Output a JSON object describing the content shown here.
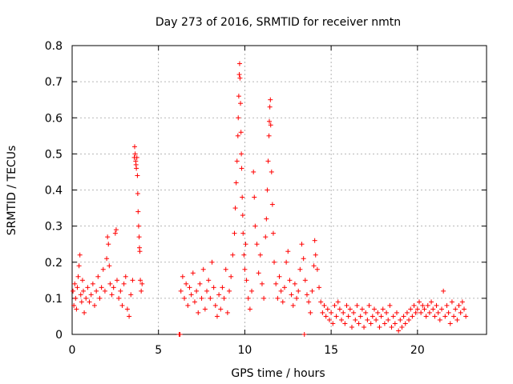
{
  "chart_data": {
    "type": "scatter",
    "title": "Day 273 of 2016, SRMTID for receiver nmtn",
    "xlabel": "GPS time / hours",
    "ylabel": "SRMTID / TECUs",
    "xlim": [
      0,
      24
    ],
    "ylim": [
      0,
      0.8
    ],
    "grid": true,
    "x_ticks": [
      0,
      5,
      10,
      15,
      20
    ],
    "y_ticks": [
      0,
      0.1,
      0.2,
      0.3,
      0.4,
      0.5,
      0.6,
      0.7,
      0.8
    ],
    "x_tick_labels": [
      "0",
      "5",
      "10",
      "15",
      "20"
    ],
    "y_tick_labels": [
      "0",
      "0.1",
      "0.2",
      "0.3",
      "0.4",
      "0.5",
      "0.6",
      "0.7",
      "0.8"
    ],
    "marker": "plus",
    "series": [
      {
        "name": "SRMTID",
        "color": "#ff0000",
        "points": [
          [
            0.05,
            0.12
          ],
          [
            0.1,
            0.08
          ],
          [
            0.15,
            0.14
          ],
          [
            0.2,
            0.1
          ],
          [
            0.25,
            0.07
          ],
          [
            0.3,
            0.13
          ],
          [
            0.35,
            0.16
          ],
          [
            0.4,
            0.19
          ],
          [
            0.45,
            0.22
          ],
          [
            0.5,
            0.11
          ],
          [
            0.55,
            0.09
          ],
          [
            0.6,
            0.15
          ],
          [
            0.65,
            0.12
          ],
          [
            0.7,
            0.06
          ],
          [
            0.8,
            0.1
          ],
          [
            0.9,
            0.13
          ],
          [
            1.0,
            0.09
          ],
          [
            1.1,
            0.11
          ],
          [
            1.2,
            0.14
          ],
          [
            1.3,
            0.08
          ],
          [
            1.4,
            0.12
          ],
          [
            1.5,
            0.16
          ],
          [
            1.6,
            0.1
          ],
          [
            1.7,
            0.13
          ],
          [
            1.8,
            0.18
          ],
          [
            1.9,
            0.12
          ],
          [
            2.0,
            0.21
          ],
          [
            2.05,
            0.27
          ],
          [
            2.1,
            0.25
          ],
          [
            2.15,
            0.19
          ],
          [
            2.2,
            0.14
          ],
          [
            2.3,
            0.11
          ],
          [
            2.4,
            0.13
          ],
          [
            2.5,
            0.28
          ],
          [
            2.55,
            0.29
          ],
          [
            2.6,
            0.15
          ],
          [
            2.7,
            0.1
          ],
          [
            2.8,
            0.12
          ],
          [
            2.9,
            0.08
          ],
          [
            3.0,
            0.14
          ],
          [
            3.1,
            0.16
          ],
          [
            3.2,
            0.07
          ],
          [
            3.3,
            0.05
          ],
          [
            3.4,
            0.11
          ],
          [
            3.5,
            0.15
          ],
          [
            3.6,
            0.49
          ],
          [
            3.62,
            0.52
          ],
          [
            3.65,
            0.5
          ],
          [
            3.68,
            0.48
          ],
          [
            3.7,
            0.47
          ],
          [
            3.72,
            0.46
          ],
          [
            3.75,
            0.49
          ],
          [
            3.78,
            0.44
          ],
          [
            3.8,
            0.39
          ],
          [
            3.82,
            0.34
          ],
          [
            3.85,
            0.3
          ],
          [
            3.88,
            0.27
          ],
          [
            3.9,
            0.24
          ],
          [
            3.92,
            0.23
          ],
          [
            3.95,
            0.15
          ],
          [
            4.0,
            0.12
          ],
          [
            4.05,
            0.14
          ],
          [
            6.2,
            0.0
          ],
          [
            6.25,
            0.0
          ],
          [
            6.3,
            0.12
          ],
          [
            6.4,
            0.16
          ],
          [
            6.5,
            0.1
          ],
          [
            6.6,
            0.14
          ],
          [
            6.7,
            0.08
          ],
          [
            6.8,
            0.13
          ],
          [
            6.9,
            0.11
          ],
          [
            7.0,
            0.17
          ],
          [
            7.1,
            0.09
          ],
          [
            7.2,
            0.12
          ],
          [
            7.3,
            0.06
          ],
          [
            7.4,
            0.14
          ],
          [
            7.5,
            0.1
          ],
          [
            7.6,
            0.18
          ],
          [
            7.7,
            0.07
          ],
          [
            7.8,
            0.12
          ],
          [
            7.9,
            0.15
          ],
          [
            8.0,
            0.1
          ],
          [
            8.1,
            0.2
          ],
          [
            8.2,
            0.13
          ],
          [
            8.3,
            0.08
          ],
          [
            8.4,
            0.05
          ],
          [
            8.5,
            0.11
          ],
          [
            8.6,
            0.07
          ],
          [
            8.7,
            0.13
          ],
          [
            8.8,
            0.1
          ],
          [
            8.9,
            0.18
          ],
          [
            9.0,
            0.06
          ],
          [
            9.1,
            0.12
          ],
          [
            9.2,
            0.16
          ],
          [
            9.3,
            0.22
          ],
          [
            9.4,
            0.28
          ],
          [
            9.45,
            0.35
          ],
          [
            9.5,
            0.42
          ],
          [
            9.55,
            0.48
          ],
          [
            9.6,
            0.55
          ],
          [
            9.62,
            0.6
          ],
          [
            9.65,
            0.66
          ],
          [
            9.68,
            0.72
          ],
          [
            9.7,
            0.75
          ],
          [
            9.72,
            0.71
          ],
          [
            9.75,
            0.64
          ],
          [
            9.78,
            0.56
          ],
          [
            9.8,
            0.5
          ],
          [
            9.82,
            0.46
          ],
          [
            9.85,
            0.38
          ],
          [
            9.88,
            0.33
          ],
          [
            9.9,
            0.28
          ],
          [
            9.95,
            0.22
          ],
          [
            10.0,
            0.18
          ],
          [
            10.05,
            0.25
          ],
          [
            10.1,
            0.15
          ],
          [
            10.2,
            0.1
          ],
          [
            10.3,
            0.07
          ],
          [
            10.4,
            0.12
          ],
          [
            10.5,
            0.45
          ],
          [
            10.55,
            0.38
          ],
          [
            10.6,
            0.3
          ],
          [
            10.7,
            0.25
          ],
          [
            10.8,
            0.17
          ],
          [
            10.9,
            0.22
          ],
          [
            11.0,
            0.14
          ],
          [
            11.1,
            0.1
          ],
          [
            11.2,
            0.27
          ],
          [
            11.25,
            0.32
          ],
          [
            11.3,
            0.4
          ],
          [
            11.35,
            0.48
          ],
          [
            11.4,
            0.55
          ],
          [
            11.42,
            0.59
          ],
          [
            11.45,
            0.63
          ],
          [
            11.48,
            0.65
          ],
          [
            11.5,
            0.58
          ],
          [
            11.55,
            0.45
          ],
          [
            11.6,
            0.36
          ],
          [
            11.65,
            0.28
          ],
          [
            11.7,
            0.2
          ],
          [
            11.8,
            0.14
          ],
          [
            11.9,
            0.1
          ],
          [
            12.0,
            0.16
          ],
          [
            12.1,
            0.12
          ],
          [
            12.2,
            0.09
          ],
          [
            12.3,
            0.13
          ],
          [
            12.4,
            0.2
          ],
          [
            12.5,
            0.23
          ],
          [
            12.6,
            0.15
          ],
          [
            12.7,
            0.11
          ],
          [
            12.8,
            0.08
          ],
          [
            12.9,
            0.14
          ],
          [
            13.0,
            0.1
          ],
          [
            13.1,
            0.12
          ],
          [
            13.2,
            0.18
          ],
          [
            13.3,
            0.25
          ],
          [
            13.4,
            0.21
          ],
          [
            13.45,
            0.0
          ],
          [
            13.5,
            0.15
          ],
          [
            13.6,
            0.11
          ],
          [
            13.7,
            0.09
          ],
          [
            13.8,
            0.06
          ],
          [
            13.9,
            0.12
          ],
          [
            14.0,
            0.19
          ],
          [
            14.05,
            0.26
          ],
          [
            14.1,
            0.22
          ],
          [
            14.2,
            0.18
          ],
          [
            14.3,
            0.13
          ],
          [
            14.4,
            0.09
          ],
          [
            14.5,
            0.06
          ],
          [
            14.6,
            0.08
          ],
          [
            14.7,
            0.05
          ],
          [
            14.8,
            0.07
          ],
          [
            14.9,
            0.04
          ],
          [
            15.0,
            0.06
          ],
          [
            15.1,
            0.03
          ],
          [
            15.2,
            0.08
          ],
          [
            15.3,
            0.05
          ],
          [
            15.4,
            0.09
          ],
          [
            15.5,
            0.07
          ],
          [
            15.6,
            0.04
          ],
          [
            15.7,
            0.06
          ],
          [
            15.8,
            0.03
          ],
          [
            15.9,
            0.08
          ],
          [
            16.0,
            0.05
          ],
          [
            16.1,
            0.07
          ],
          [
            16.2,
            0.02
          ],
          [
            16.3,
            0.06
          ],
          [
            16.4,
            0.04
          ],
          [
            16.5,
            0.08
          ],
          [
            16.6,
            0.03
          ],
          [
            16.7,
            0.05
          ],
          [
            16.8,
            0.07
          ],
          [
            16.9,
            0.02
          ],
          [
            17.0,
            0.06
          ],
          [
            17.1,
            0.04
          ],
          [
            17.2,
            0.08
          ],
          [
            17.3,
            0.03
          ],
          [
            17.4,
            0.05
          ],
          [
            17.5,
            0.07
          ],
          [
            17.6,
            0.04
          ],
          [
            17.7,
            0.06
          ],
          [
            17.8,
            0.02
          ],
          [
            17.9,
            0.05
          ],
          [
            18.0,
            0.07
          ],
          [
            18.1,
            0.03
          ],
          [
            18.2,
            0.06
          ],
          [
            18.3,
            0.04
          ],
          [
            18.4,
            0.08
          ],
          [
            18.5,
            0.02
          ],
          [
            18.6,
            0.05
          ],
          [
            18.7,
            0.03
          ],
          [
            18.8,
            0.06
          ],
          [
            18.9,
            0.01
          ],
          [
            19.0,
            0.04
          ],
          [
            19.1,
            0.02
          ],
          [
            19.2,
            0.05
          ],
          [
            19.3,
            0.03
          ],
          [
            19.4,
            0.06
          ],
          [
            19.5,
            0.04
          ],
          [
            19.6,
            0.07
          ],
          [
            19.7,
            0.05
          ],
          [
            19.8,
            0.08
          ],
          [
            19.9,
            0.06
          ],
          [
            20.0,
            0.07
          ],
          [
            20.1,
            0.09
          ],
          [
            20.2,
            0.06
          ],
          [
            20.3,
            0.08
          ],
          [
            20.4,
            0.07
          ],
          [
            20.5,
            0.05
          ],
          [
            20.6,
            0.08
          ],
          [
            20.7,
            0.06
          ],
          [
            20.8,
            0.09
          ],
          [
            20.9,
            0.07
          ],
          [
            21.0,
            0.05
          ],
          [
            21.1,
            0.08
          ],
          [
            21.2,
            0.06
          ],
          [
            21.3,
            0.04
          ],
          [
            21.4,
            0.07
          ],
          [
            21.5,
            0.12
          ],
          [
            21.6,
            0.05
          ],
          [
            21.7,
            0.08
          ],
          [
            21.8,
            0.06
          ],
          [
            21.9,
            0.03
          ],
          [
            22.0,
            0.09
          ],
          [
            22.1,
            0.05
          ],
          [
            22.2,
            0.07
          ],
          [
            22.3,
            0.04
          ],
          [
            22.4,
            0.08
          ],
          [
            22.5,
            0.06
          ],
          [
            22.6,
            0.09
          ],
          [
            22.7,
            0.07
          ],
          [
            22.8,
            0.05
          ]
        ]
      }
    ]
  }
}
